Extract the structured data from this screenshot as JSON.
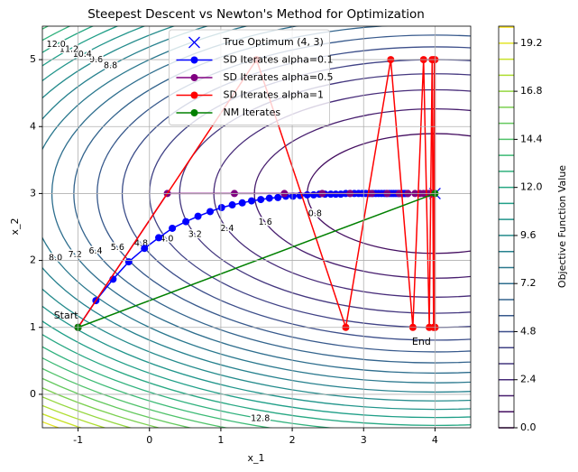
{
  "chart_data": {
    "type": "contour",
    "title": "Steepest Descent vs Newton's Method for Optimization",
    "x_label": "x_1",
    "y_label": "x_2",
    "xlim": [
      -1.5,
      4.5
    ],
    "ylim": [
      -0.5,
      5.5
    ],
    "xticks": [
      -1,
      0,
      1,
      2,
      3,
      4
    ],
    "yticks": [
      0,
      1,
      2,
      3,
      4,
      5
    ],
    "grid": true,
    "legend": "upper center",
    "contour_levels": [
      0,
      0.8,
      1.6,
      2.4,
      3.2,
      {
        "value": 4,
        "label": "4.0"
      },
      4.8,
      5.6,
      6.4,
      7.2,
      {
        "value": 8,
        "label": "8.0"
      },
      8.8,
      9.6,
      10.4,
      11.2,
      {
        "value": 12,
        "label": "12.0"
      },
      12.8,
      13.6,
      14.4,
      15.2,
      {
        "value": 16,
        "label": "16.0"
      },
      16.8,
      17.6,
      18.4,
      19.2,
      20
    ],
    "colorbar": {
      "label": "Objective Function Value",
      "lim": [
        0,
        20.05
      ],
      "ticks": [
        {
          "value": 0,
          "label": "0.0"
        },
        2.4,
        4.8,
        7.2,
        9.6,
        {
          "value": 12,
          "label": "12.0"
        },
        14.4,
        16.8,
        19.2
      ]
    },
    "series": [
      {
        "name": "True Optimum (4, 3)",
        "color": "#0000ff",
        "marker": "x",
        "x": [
          4
        ],
        "y": [
          3
        ]
      },
      {
        "name": "SD Iterates alpha=0.1",
        "color": "#0000ff",
        "marker": "o",
        "x": [
          -1,
          -0.75,
          -0.51,
          -0.29,
          -0.07,
          0.13,
          0.32,
          0.51,
          0.68,
          0.85,
          1.01,
          1.16,
          1.3,
          1.43,
          1.56,
          1.68,
          1.8,
          1.91,
          2.01,
          2.11,
          2.21,
          2.3,
          2.38,
          2.46,
          2.54,
          2.61,
          2.68,
          2.75,
          2.81,
          2.87,
          2.93,
          2.98,
          3.03,
          3.08,
          3.13,
          3.17,
          3.21,
          3.25,
          3.29,
          3.32,
          3.36,
          3.39,
          3.42,
          3.45,
          3.48,
          3.5,
          3.53,
          3.55,
          3.57,
          3.59,
          3.62
        ],
        "y": [
          1,
          1.4,
          1.72,
          1.98,
          2.18,
          2.34,
          2.48,
          2.58,
          2.66,
          2.73,
          2.79,
          2.83,
          2.86,
          2.89,
          2.91,
          2.93,
          2.94,
          2.96,
          2.96,
          2.97,
          2.98,
          2.98,
          2.99,
          2.99,
          2.99,
          2.99,
          2.99,
          3,
          3,
          3,
          3,
          3,
          3,
          3,
          3,
          3,
          3,
          3,
          3,
          3,
          3,
          3,
          3,
          3,
          3,
          3,
          3,
          3,
          3,
          3,
          3
        ]
      },
      {
        "name": "SD Iterates alpha=0.5",
        "color": "#800080",
        "marker": "o",
        "x": [
          -1,
          0.25,
          1.19,
          1.89,
          2.42,
          2.81,
          3.11,
          3.33,
          3.5,
          3.62,
          3.72,
          3.79,
          3.84,
          3.88,
          3.91,
          3.93,
          3.95
        ],
        "y": [
          1,
          3,
          3,
          3,
          3,
          3,
          3,
          3,
          3,
          3,
          3,
          3,
          3,
          3,
          3,
          3,
          3
        ]
      },
      {
        "name": "SD Iterates alpha=1",
        "color": "#ff0000",
        "marker": "o",
        "x": [
          -1,
          1.5,
          2.75,
          3.38,
          3.69,
          3.84,
          3.92,
          3.96,
          3.98,
          3.99,
          4,
          4,
          4
        ],
        "y": [
          1,
          5,
          1,
          5,
          1,
          5,
          1,
          5,
          1,
          5,
          1,
          5,
          1
        ]
      },
      {
        "name": "NM Iterates",
        "color": "#008000",
        "marker": "o",
        "x": [
          -1,
          4
        ],
        "y": [
          1,
          3
        ]
      }
    ],
    "annotations": [
      {
        "text": "Start",
        "color": "#ff0000"
      },
      {
        "text": "End",
        "color": "#ff0000"
      }
    ]
  }
}
